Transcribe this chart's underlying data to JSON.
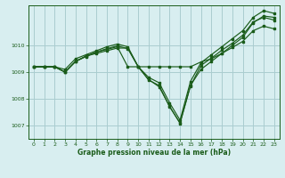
{
  "background_color": "#d8eef0",
  "grid_color": "#aaccd0",
  "line_color": "#1a5c1a",
  "title": "Graphe pression niveau de la mer (hPa)",
  "xlim": [
    -0.5,
    23.5
  ],
  "ylim": [
    1006.5,
    1011.5
  ],
  "yticks": [
    1007,
    1008,
    1009,
    1010
  ],
  "xticks": [
    0,
    1,
    2,
    3,
    4,
    5,
    6,
    7,
    8,
    9,
    10,
    11,
    12,
    13,
    14,
    15,
    16,
    17,
    18,
    19,
    20,
    21,
    22,
    23
  ],
  "series": [
    [
      1009.2,
      1009.2,
      1009.2,
      1009.0,
      1009.4,
      1009.6,
      1009.7,
      1009.8,
      1009.9,
      1009.9,
      1009.2,
      1008.7,
      1008.5,
      1007.7,
      1007.1,
      1008.5,
      1009.1,
      1009.4,
      1009.7,
      1010.0,
      1010.3,
      1010.85,
      1011.1,
      1011.05
    ],
    [
      1009.2,
      1009.2,
      1009.2,
      1009.1,
      1009.5,
      1009.65,
      1009.8,
      1009.95,
      1010.05,
      1009.95,
      1009.2,
      1008.8,
      1008.6,
      1007.85,
      1007.2,
      1008.65,
      1009.35,
      1009.65,
      1009.95,
      1010.25,
      1010.55,
      1011.05,
      1011.3,
      1011.2
    ],
    [
      1009.2,
      1009.2,
      1009.2,
      1009.0,
      1009.4,
      1009.58,
      1009.75,
      1009.88,
      1009.98,
      1009.88,
      1009.2,
      1008.72,
      1008.45,
      1007.72,
      1007.08,
      1008.48,
      1009.25,
      1009.52,
      1009.82,
      1010.08,
      1010.38,
      1010.88,
      1011.05,
      1010.95
    ],
    [
      1009.2,
      1009.2,
      1009.2,
      1009.0,
      1009.4,
      1009.6,
      1009.75,
      1009.85,
      1009.95,
      1009.2,
      1009.2,
      1009.2,
      1009.2,
      1009.2,
      1009.2,
      1009.2,
      1009.38,
      1009.5,
      1009.7,
      1009.92,
      1010.15,
      1010.55,
      1010.72,
      1010.62
    ]
  ]
}
